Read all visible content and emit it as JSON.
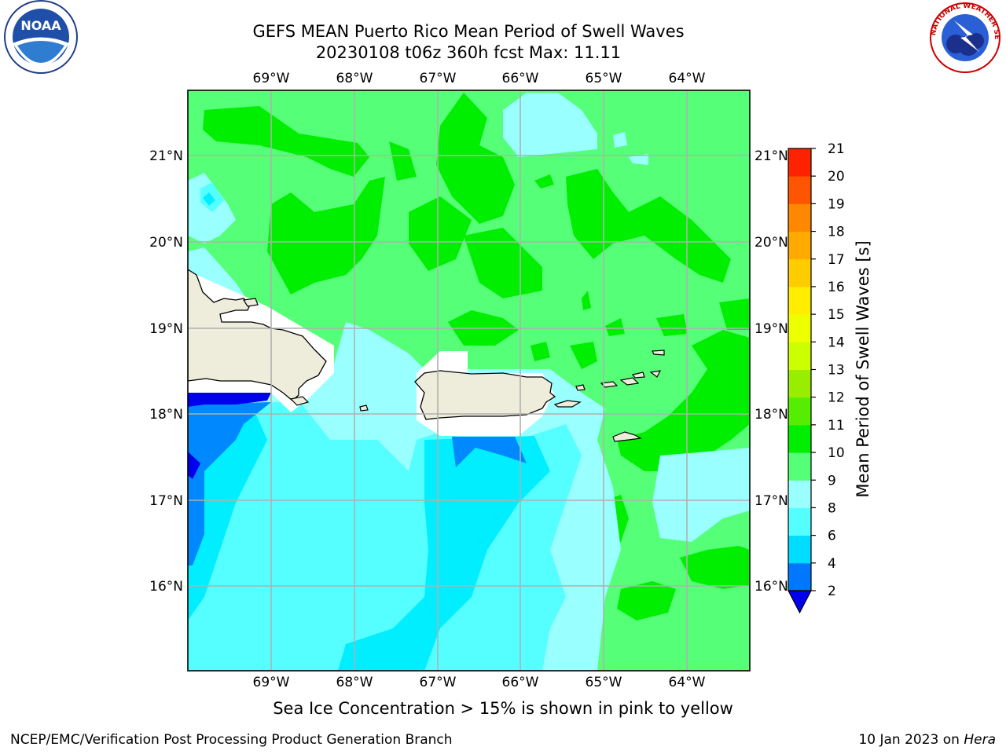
{
  "header": {
    "title_line1": "GEFS MEAN Puerto Rico Mean Period of Swell Waves",
    "title_line2": "20230108 t06z 360h fcst   Max: 11.11",
    "left_logo_text": "NOAA",
    "right_logo_text": "NATIONAL WEATHER SERVICE"
  },
  "map": {
    "lon_labels": [
      "69°W",
      "68°W",
      "67°W",
      "66°W",
      "65°W",
      "64°W"
    ],
    "lat_labels": [
      "21°N",
      "20°N",
      "19°N",
      "18°N",
      "17°N",
      "16°N"
    ],
    "colors": {
      "land": "#eeeddb",
      "green_10_11": "#00ee00",
      "green_9_10": "#55ff77",
      "cyan_8_9": "#99ffff",
      "cyan_6_8": "#55ffff",
      "cyan_4_6": "#00eeff",
      "blue_2_4": "#0088ff",
      "deep_blue": "#0000ee"
    }
  },
  "colorbar": {
    "label": "Mean Period of Swell Waves [s]",
    "ticks": [
      "2",
      "4",
      "6",
      "8",
      "9",
      "10",
      "11",
      "12",
      "13",
      "14",
      "15",
      "16",
      "17",
      "18",
      "19",
      "20",
      "21"
    ],
    "colors": [
      "#0077ff",
      "#00ddff",
      "#55ffff",
      "#99ffff",
      "#55ff77",
      "#00ee00",
      "#55ee00",
      "#99ee00",
      "#ccff00",
      "#eeff00",
      "#ffee00",
      "#ffcc00",
      "#ffaa00",
      "#ff8800",
      "#ff5500",
      "#ff2200",
      "#ff0000"
    ],
    "extend_color": "#0000ee"
  },
  "footer": {
    "subnote": "Sea Ice Concentration > 15% is shown in pink to yellow",
    "left": "NCEP/EMC/Verification Post Processing Product Generation Branch",
    "right_prefix": "10 Jan 2023 on ",
    "right_host": "Hera"
  }
}
